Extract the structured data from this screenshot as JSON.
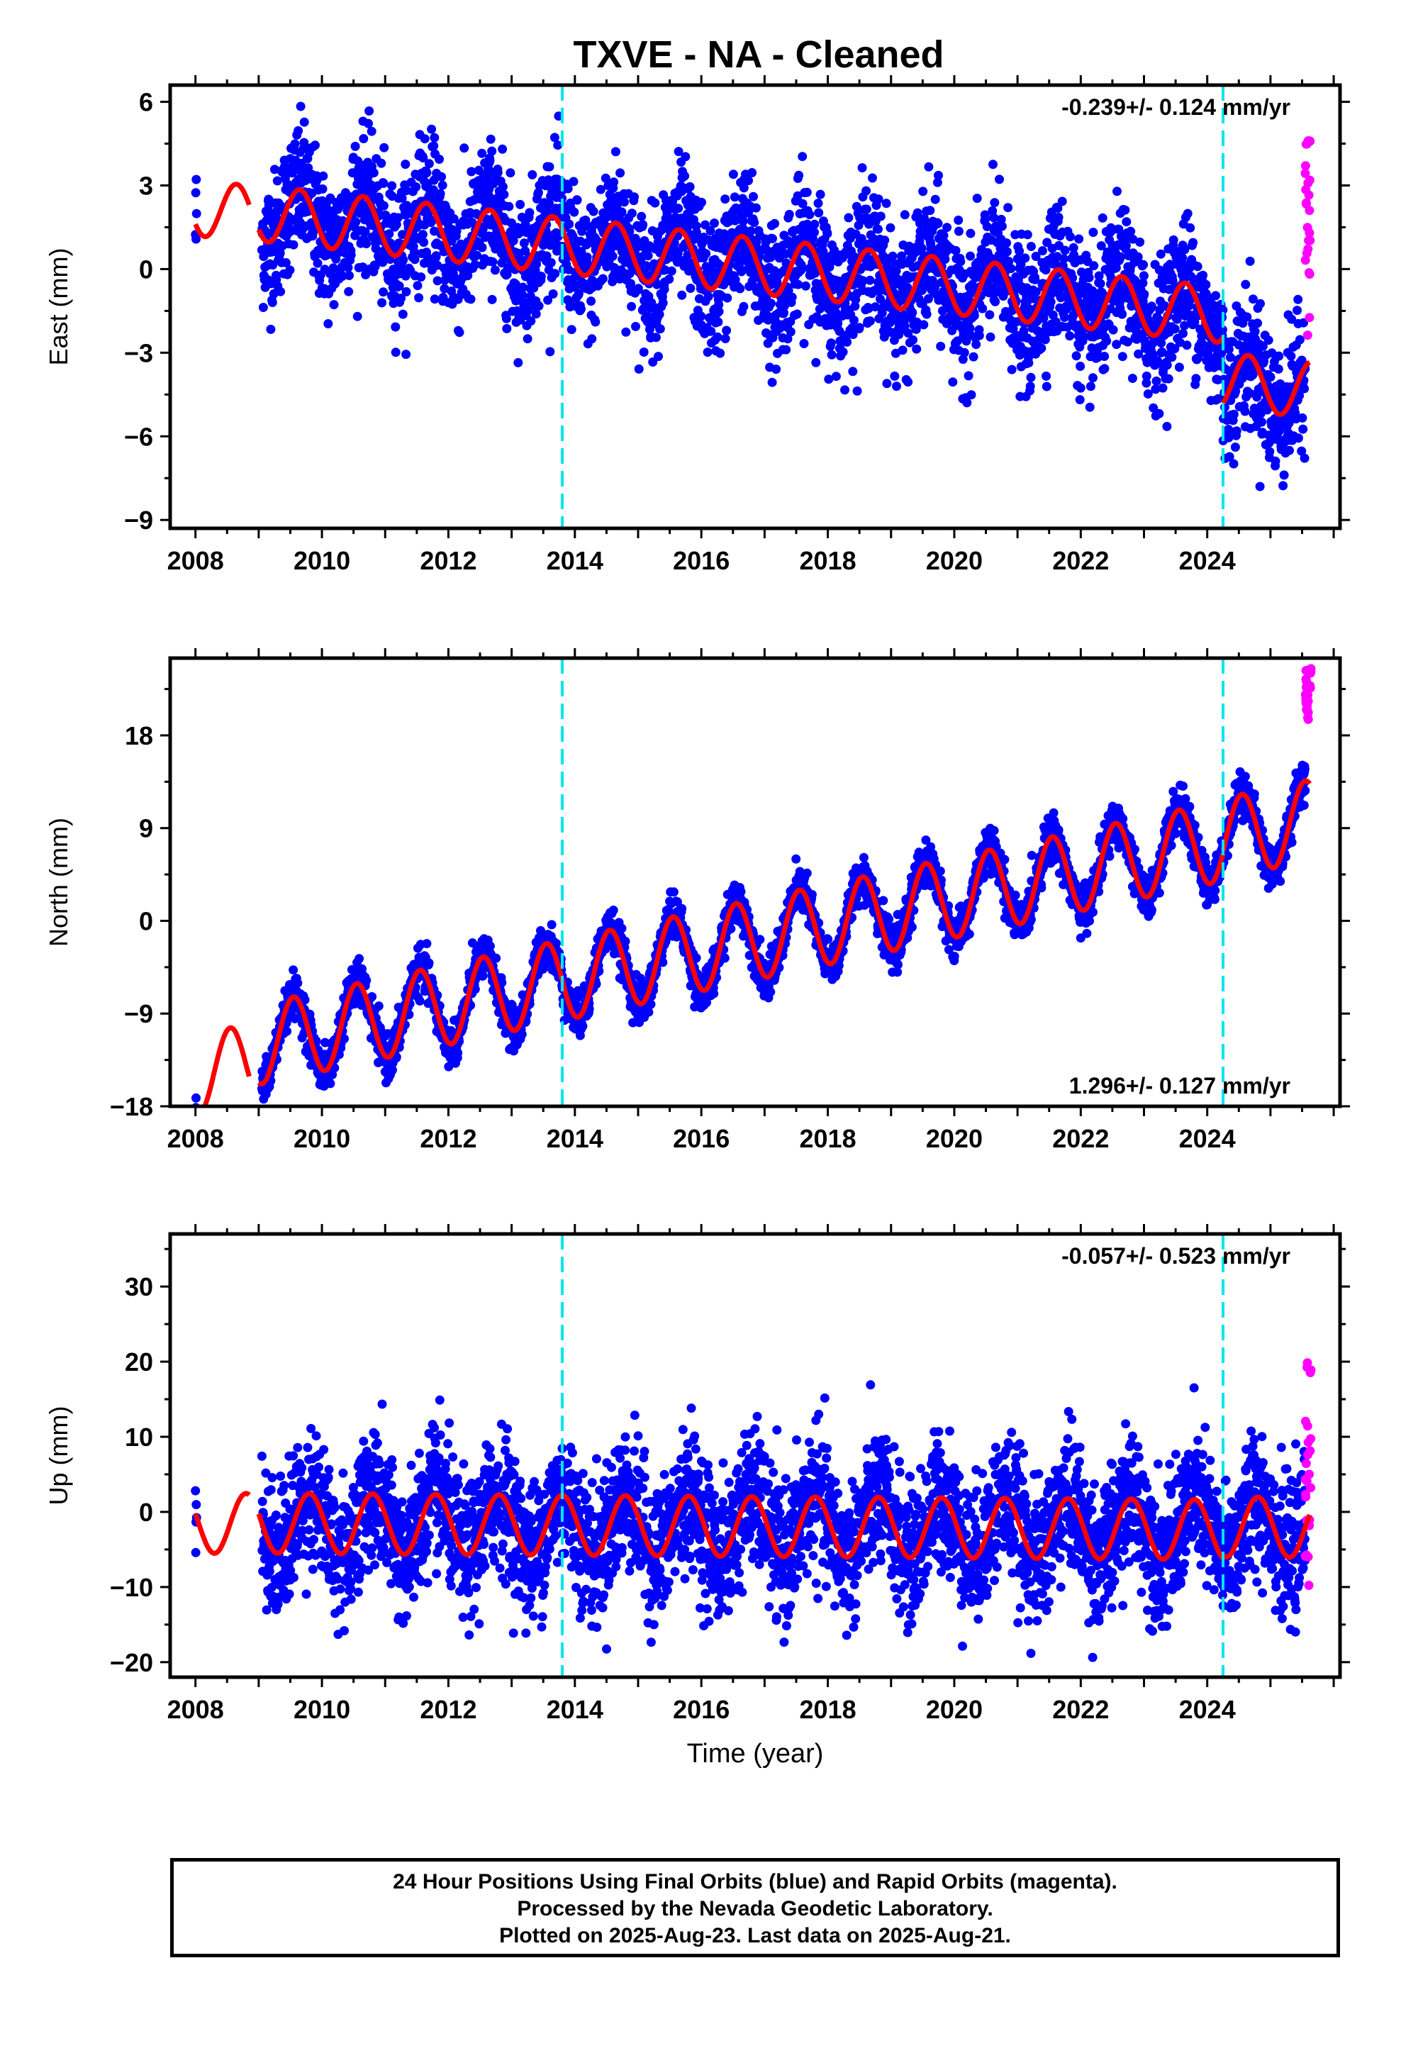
{
  "title": "TXVE  - NA - Cleaned",
  "footer": {
    "line1": "24 Hour Positions Using Final Orbits (blue) and Rapid Orbits (magenta).",
    "line2": "Processed by the Nevada Geodetic Laboratory.",
    "line3": "Plotted on 2025-Aug-23. Last data on 2025-Aug-21."
  },
  "colors": {
    "final_orbits": "#0000ff",
    "rapid_orbits": "#ff00ff",
    "model": "#ff0000",
    "equipment_change": "#00e5ee",
    "frame": "#000000"
  },
  "chart_data": [
    {
      "type": "scatter",
      "name": "east",
      "ylabel": "East (mm)",
      "xlabel": "",
      "xlim": [
        2007.6,
        2026.1
      ],
      "ylim": [
        -9.3,
        6.6
      ],
      "xticks": [
        2008,
        2010,
        2012,
        2014,
        2016,
        2018,
        2020,
        2022,
        2024
      ],
      "yticks": [
        -9,
        -6,
        -3,
        0,
        3,
        6
      ],
      "tick_labels_y": [
        "−9",
        "−6",
        "−3",
        "0",
        "3",
        "6"
      ],
      "rate_label": "-0.239+/- 0.124 mm/yr",
      "rate_label_position": "top-right",
      "vlines": [
        2013.8,
        2024.25
      ],
      "model": {
        "segments": [
          [
            2008.0,
            2008.85
          ],
          [
            2009.0,
            2024.25
          ],
          [
            2024.25,
            2025.62
          ]
        ],
        "trend_mm_per_yr": -0.239,
        "amplitude": 1.0,
        "phase_peak": 0.65,
        "offsets": [
          {
            "t0": 2008.0,
            "y0": 2.2
          },
          {
            "t0": 2009.0,
            "y0": 2.0
          },
          {
            "t0": 2024.25,
            "y0": -4.0
          }
        ]
      },
      "final_points": {
        "start": 2008.0,
        "gap": [
          2008.02,
          2009.05
        ],
        "end": 2025.55,
        "scatter_sd": 1.2
      },
      "rapid_points": {
        "start": 2025.55,
        "end": 2025.64,
        "range": [
          -2.5,
          4.7
        ]
      }
    },
    {
      "type": "scatter",
      "name": "north",
      "ylabel": "North (mm)",
      "xlabel": "",
      "xlim": [
        2007.6,
        2026.1
      ],
      "ylim": [
        -18.0,
        25.5
      ],
      "xticks": [
        2008,
        2010,
        2012,
        2014,
        2016,
        2018,
        2020,
        2022,
        2024
      ],
      "yticks": [
        -18,
        -9,
        0,
        9,
        18
      ],
      "tick_labels_y": [
        "−18",
        "−9",
        "0",
        "9",
        "18"
      ],
      "rate_label": "1.296+/- 0.127 mm/yr",
      "rate_label_position": "bottom-right",
      "vlines": [
        2013.8,
        2024.25
      ],
      "model": {
        "segments": [
          [
            2008.0,
            2008.85
          ],
          [
            2009.0,
            2024.25
          ],
          [
            2024.25,
            2025.62
          ]
        ],
        "trend_mm_per_yr": 1.296,
        "amplitude": 3.9,
        "phase_peak": 0.55,
        "offsets": [
          {
            "t0": 2008.0,
            "y0": -15.0
          },
          {
            "t0": 2009.0,
            "y0": -12.0
          },
          {
            "t0": 2024.25,
            "y0": 8.0
          }
        ]
      },
      "final_points": {
        "start": 2008.0,
        "gap": [
          2008.02,
          2009.05
        ],
        "end": 2025.55,
        "scatter_sd": 1.0
      },
      "rapid_points": {
        "start": 2025.55,
        "end": 2025.64,
        "range": [
          19.5,
          24.5
        ]
      }
    },
    {
      "type": "scatter",
      "name": "up",
      "ylabel": "Up (mm)",
      "xlabel": "Time (year)",
      "xlim": [
        2007.6,
        2026.1
      ],
      "ylim": [
        -22.0,
        37.0
      ],
      "xticks": [
        2008,
        2010,
        2012,
        2014,
        2016,
        2018,
        2020,
        2022,
        2024
      ],
      "yticks": [
        -20,
        -10,
        0,
        10,
        20,
        30
      ],
      "tick_labels_y": [
        "−20",
        "−10",
        "0",
        "10",
        "20",
        "30"
      ],
      "rate_label": "-0.057+/- 0.523 mm/yr",
      "rate_label_position": "top-right",
      "vlines": [
        2013.8,
        2024.25
      ],
      "model": {
        "segments": [
          [
            2008.0,
            2008.85
          ],
          [
            2009.0,
            2024.25
          ],
          [
            2024.25,
            2025.62
          ]
        ],
        "trend_mm_per_yr": -0.057,
        "amplitude": 4.0,
        "phase_peak": 0.8,
        "offsets": [
          {
            "t0": 2008.0,
            "y0": -1.5
          },
          {
            "t0": 2009.0,
            "y0": -1.5
          },
          {
            "t0": 2024.25,
            "y0": -2.0
          }
        ]
      },
      "final_points": {
        "start": 2008.0,
        "gap": [
          2008.02,
          2009.05
        ],
        "end": 2025.55,
        "scatter_sd": 4.5
      },
      "rapid_points": {
        "start": 2025.55,
        "end": 2025.64,
        "range": [
          -10,
          20
        ]
      }
    }
  ]
}
